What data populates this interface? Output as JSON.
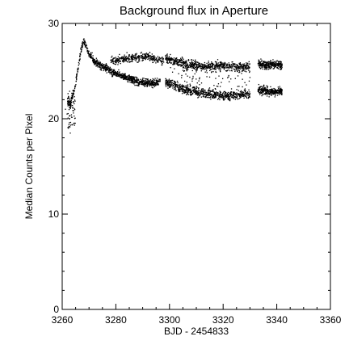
{
  "chart_data": {
    "type": "scatter",
    "title": "Background flux in Aperture",
    "xlabel": "BJD - 2454833",
    "ylabel": "Median Counts per Pixel",
    "xlim": [
      3260,
      3360
    ],
    "ylim": [
      0,
      30
    ],
    "xticks": [
      "3260",
      "3280",
      "3300",
      "3320",
      "3340",
      "3360"
    ],
    "yticks": [
      "0",
      "10",
      "20",
      "30"
    ],
    "grid": false,
    "legend": "none",
    "marker_color": "#000000",
    "series": [
      {
        "trend": [
          [
            3262.0,
            21.8
          ],
          [
            3263.0,
            21.5
          ],
          [
            3264.0,
            22.5
          ],
          [
            3265.0,
            23.8
          ],
          [
            3266.0,
            25.5
          ],
          [
            3267.0,
            27.2
          ],
          [
            3268.0,
            28.2
          ],
          [
            3269.0,
            27.6
          ],
          [
            3270.0,
            26.8
          ],
          [
            3272.0,
            26.0
          ],
          [
            3275.0,
            25.5
          ],
          [
            3278.0,
            25.0
          ],
          [
            3282.0,
            24.5
          ],
          [
            3286.0,
            24.1
          ],
          [
            3290.0,
            23.8
          ],
          [
            3294.0,
            23.7
          ],
          [
            3296.5,
            23.9
          ]
        ],
        "upper_band": [
          [
            3278.0,
            26.0
          ],
          [
            3282.0,
            26.2
          ],
          [
            3286.0,
            26.4
          ],
          [
            3290.0,
            26.5
          ],
          [
            3292.0,
            26.6
          ],
          [
            3295.0,
            26.2
          ],
          [
            3298.0,
            26.0
          ]
        ],
        "seg2_upper": [
          [
            3298.5,
            26.3
          ],
          [
            3305.0,
            25.8
          ],
          [
            3310.0,
            25.6
          ],
          [
            3315.0,
            25.5
          ],
          [
            3320.0,
            25.6
          ],
          [
            3325.0,
            25.4
          ],
          [
            3330.0,
            25.5
          ]
        ],
        "seg2_lower": [
          [
            3298.5,
            23.9
          ],
          [
            3305.0,
            23.1
          ],
          [
            3310.0,
            22.8
          ],
          [
            3315.0,
            22.6
          ],
          [
            3320.0,
            22.4
          ],
          [
            3325.0,
            22.5
          ],
          [
            3330.0,
            22.6
          ]
        ],
        "seg3_upper": [
          [
            3333.0,
            25.8
          ],
          [
            3336.0,
            25.6
          ],
          [
            3339.0,
            25.7
          ],
          [
            3342.0,
            25.6
          ]
        ],
        "seg3_lower": [
          [
            3333.0,
            23.1
          ],
          [
            3336.0,
            22.9
          ],
          [
            3339.0,
            22.8
          ],
          [
            3342.0,
            22.9
          ]
        ],
        "dropouts": [
          [
            3261.8,
            20.5
          ],
          [
            3262.5,
            19.2
          ],
          [
            3263.0,
            18.5
          ],
          [
            3261.2,
            21.0
          ]
        ]
      }
    ]
  }
}
